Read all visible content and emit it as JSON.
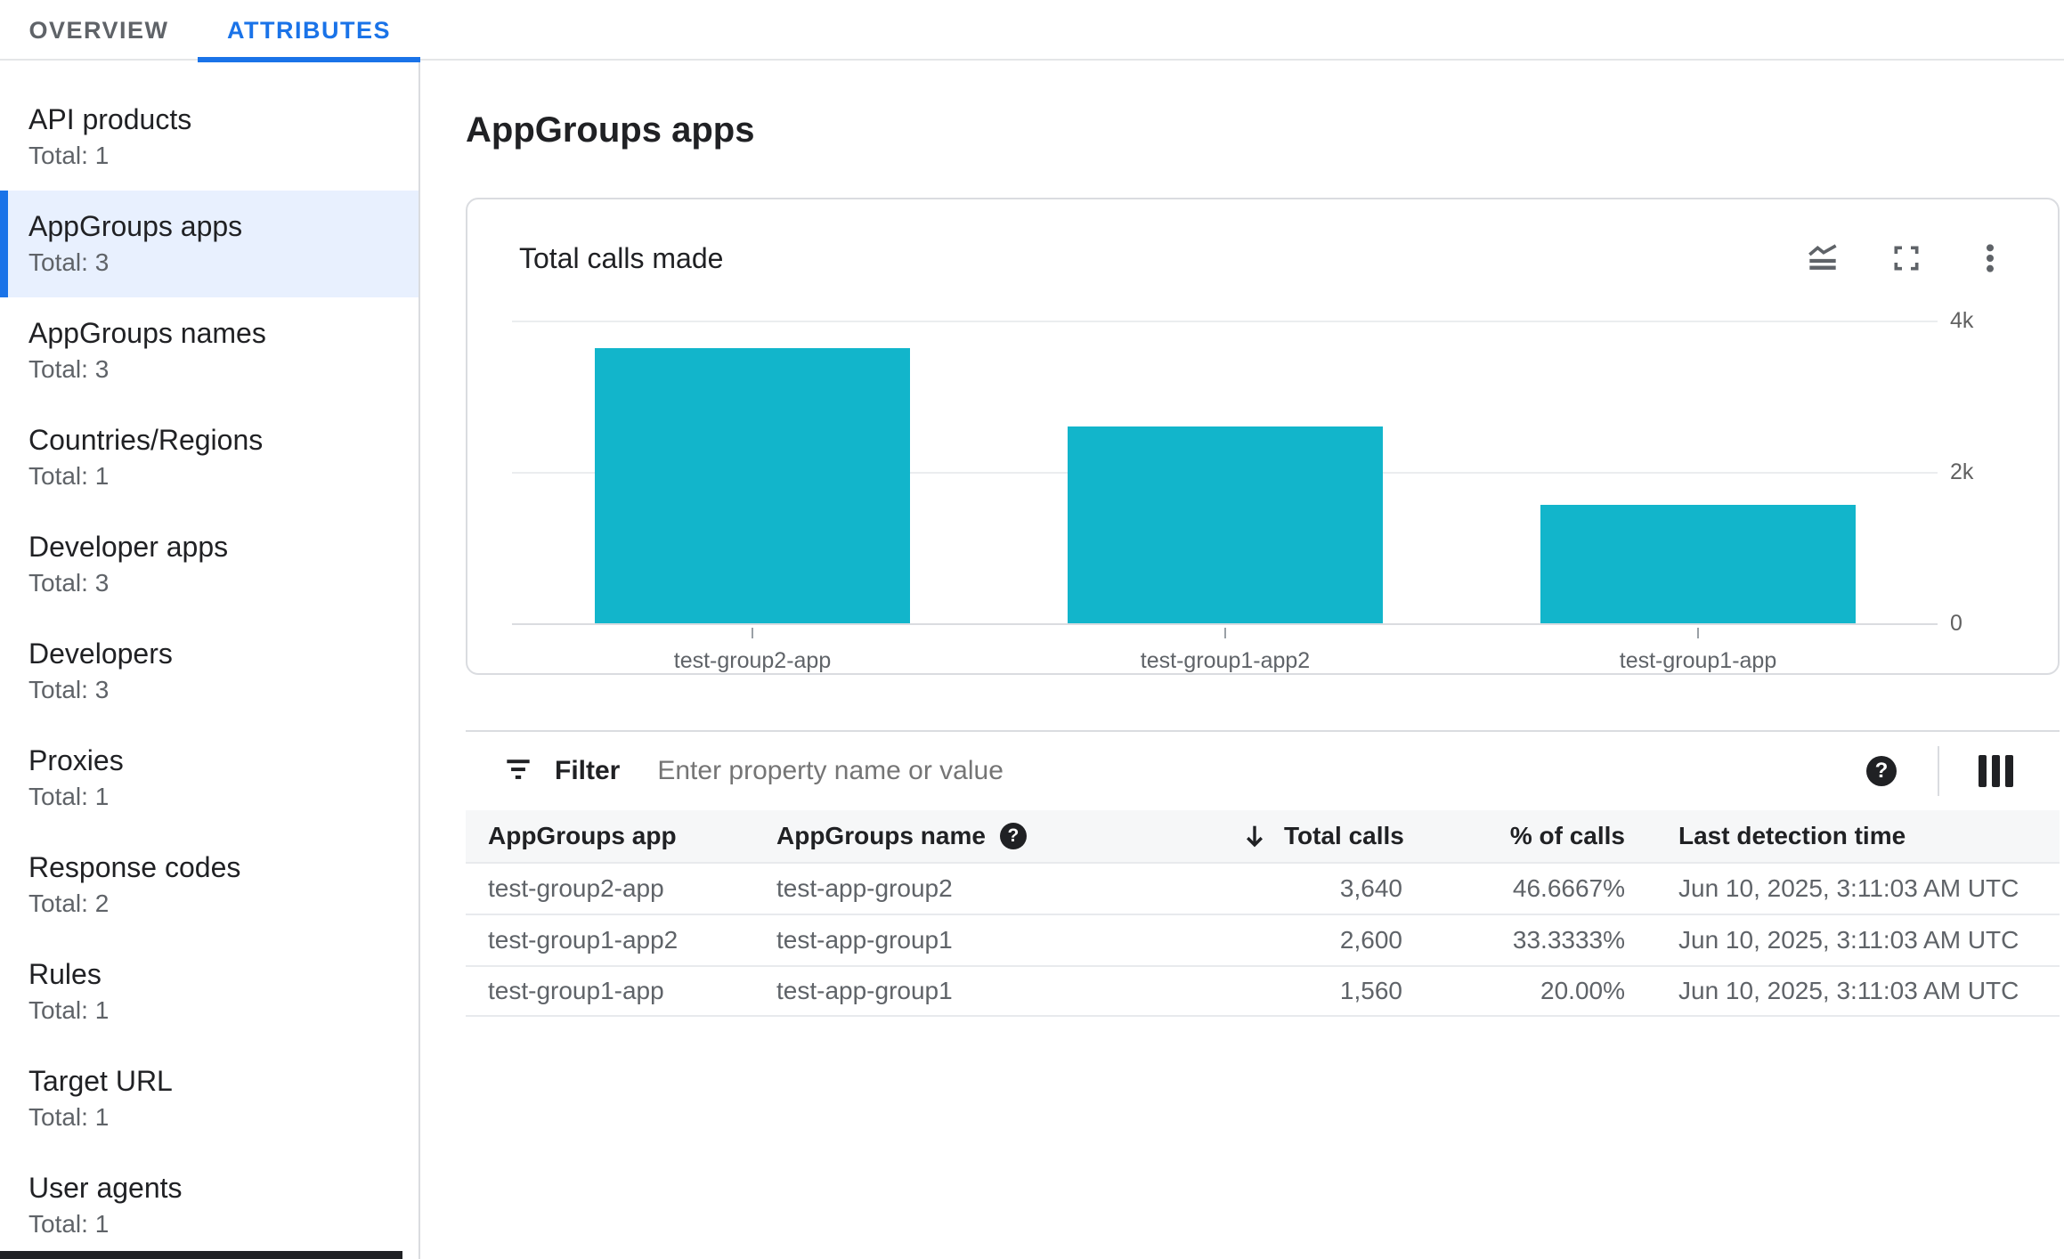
{
  "tabs": {
    "overview": "OVERVIEW",
    "attributes": "ATTRIBUTES"
  },
  "sidebar": {
    "items": [
      {
        "label": "API products",
        "total": "Total: 1",
        "selected": false
      },
      {
        "label": "AppGroups apps",
        "total": "Total: 3",
        "selected": true
      },
      {
        "label": "AppGroups names",
        "total": "Total: 3",
        "selected": false
      },
      {
        "label": "Countries/Regions",
        "total": "Total: 1",
        "selected": false
      },
      {
        "label": "Developer apps",
        "total": "Total: 3",
        "selected": false
      },
      {
        "label": "Developers",
        "total": "Total: 3",
        "selected": false
      },
      {
        "label": "Proxies",
        "total": "Total: 1",
        "selected": false
      },
      {
        "label": "Response codes",
        "total": "Total: 2",
        "selected": false
      },
      {
        "label": "Rules",
        "total": "Total: 1",
        "selected": false
      },
      {
        "label": "Target URL",
        "total": "Total: 1",
        "selected": false
      },
      {
        "label": "User agents",
        "total": "Total: 1",
        "selected": false
      }
    ]
  },
  "page": {
    "title": "AppGroups apps"
  },
  "chart_card": {
    "title": "Total calls made",
    "icons": [
      "area-chart",
      "fullscreen",
      "more-vert"
    ]
  },
  "chart_data": {
    "type": "bar",
    "title": "Total calls made",
    "categories": [
      "test-group2-app",
      "test-group1-app2",
      "test-group1-app"
    ],
    "values": [
      3640,
      2600,
      1560
    ],
    "xlabel": "",
    "ylabel": "",
    "ylim": [
      0,
      4000
    ],
    "yticks": [
      {
        "label": "4k",
        "value": 4000
      },
      {
        "label": "2k",
        "value": 2000
      },
      {
        "label": "0",
        "value": 0
      }
    ],
    "bar_color": "#12b5cb",
    "grid": true,
    "legend": false,
    "y_axis_side": "right"
  },
  "filter": {
    "label": "Filter",
    "placeholder": "Enter property name or value"
  },
  "table": {
    "columns": [
      {
        "label": "AppGroups app",
        "align": "left"
      },
      {
        "label": "AppGroups name",
        "align": "left",
        "help_icon": true
      },
      {
        "label": "Total calls made",
        "align": "right",
        "sort": "desc"
      },
      {
        "label": "% of calls",
        "align": "right"
      },
      {
        "label": "Last detection time",
        "align": "left"
      }
    ],
    "rows": [
      {
        "app": "test-group2-app",
        "name": "test-app-group2",
        "calls": "3,640",
        "percent": "46.6667%",
        "last_detection": "Jun 10, 2025, 3:11:03 AM UTC"
      },
      {
        "app": "test-group1-app2",
        "name": "test-app-group1",
        "calls": "2,600",
        "percent": "33.3333%",
        "last_detection": "Jun 10, 2025, 3:11:03 AM UTC"
      },
      {
        "app": "test-group1-app",
        "name": "test-app-group1",
        "calls": "1,560",
        "percent": "20.00%",
        "last_detection": "Jun 10, 2025, 3:11:03 AM UTC"
      }
    ]
  },
  "colors": {
    "accent": "#1a73e8",
    "bar": "#12b5cb",
    "selected_bg": "#e8f0fe",
    "text_primary": "#202124",
    "text_secondary": "#5f6368",
    "border": "#dadce0",
    "grid": "#e8eaed",
    "header_bg": "#f8f9fa"
  }
}
